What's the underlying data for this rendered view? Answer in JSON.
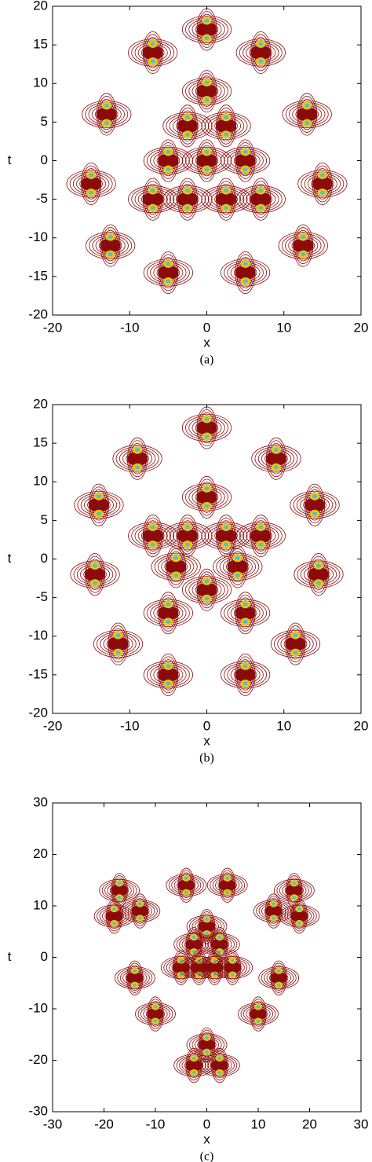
{
  "chart_data": [
    {
      "type": "contour",
      "xlabel": "x",
      "ylabel": "t",
      "caption": "(a)",
      "color": "#8b0a0a",
      "xlim": [
        -20,
        20
      ],
      "ylim": [
        -20,
        20
      ],
      "xticks": [
        -20,
        -10,
        0,
        10,
        20
      ],
      "yticks": [
        -20,
        -15,
        -10,
        -5,
        0,
        5,
        10,
        15,
        20
      ],
      "x": [
        -7,
        0,
        7,
        0,
        -13,
        13,
        -2.5,
        2.5,
        -5,
        0,
        5,
        -15,
        15,
        -7,
        -2.5,
        2.5,
        7,
        -12.5,
        12.5,
        -5,
        5
      ],
      "y": [
        14,
        17,
        14,
        9,
        6,
        6,
        4.5,
        4.5,
        0,
        0,
        0,
        -3,
        -3,
        -5,
        -5,
        -5,
        -5,
        -11,
        -11,
        -14.5,
        -14.5
      ]
    },
    {
      "type": "contour",
      "xlabel": "x",
      "ylabel": "t",
      "caption": "(b)",
      "color": "#8b0a0a",
      "xlim": [
        -20,
        20
      ],
      "ylim": [
        -20,
        20
      ],
      "xticks": [
        -20,
        -10,
        0,
        10,
        20
      ],
      "yticks": [
        -20,
        -15,
        -10,
        -5,
        0,
        5,
        10,
        15,
        20
      ],
      "x": [
        -9,
        0,
        9,
        0,
        -14,
        14,
        -7,
        -2.5,
        2.5,
        7,
        -14.5,
        14.5,
        -4,
        4,
        0,
        -5,
        5,
        -11.5,
        11.5,
        -5,
        5
      ],
      "y": [
        13,
        17,
        13,
        8,
        7,
        7,
        3,
        3,
        3,
        3,
        -2,
        -2,
        -1,
        -1,
        -4,
        -7,
        -7,
        -11,
        -11,
        -15,
        -15
      ]
    },
    {
      "type": "contour",
      "xlabel": "x",
      "ylabel": "t",
      "caption": "(c)",
      "color": "#8b0a0a",
      "xlim": [
        -30,
        30
      ],
      "ylim": [
        -30,
        30
      ],
      "xticks": [
        -30,
        -20,
        -10,
        0,
        10,
        20,
        30
      ],
      "yticks": [
        -30,
        -20,
        -10,
        0,
        10,
        20,
        30
      ],
      "x": [
        -17,
        -18,
        -13,
        -4,
        4,
        13,
        17,
        18,
        0,
        -2.5,
        2.5,
        -5,
        -1.5,
        1.5,
        5,
        -14,
        14,
        -10,
        10,
        0,
        -2.5,
        2.5
      ],
      "y": [
        13,
        8,
        9,
        14,
        14,
        9,
        13,
        8,
        6,
        2.5,
        2.5,
        -2,
        -2,
        -2,
        -2,
        -4,
        -4,
        -11,
        -11,
        -17,
        -21,
        -21
      ]
    }
  ]
}
